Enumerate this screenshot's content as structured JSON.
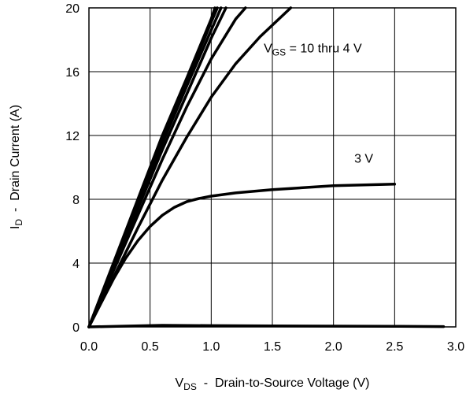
{
  "chart_data": {
    "type": "line",
    "xlim": [
      0,
      3
    ],
    "ylim": [
      0,
      20
    ],
    "x_ticks": [
      "0.0",
      "0.5",
      "1.0",
      "1.5",
      "2.0",
      "2.5",
      "3.0"
    ],
    "y_ticks": [
      "0",
      "4",
      "8",
      "12",
      "16",
      "20"
    ],
    "grid": true,
    "legend": "none",
    "xlabel": {
      "main": "V",
      "sub": "DS",
      "rest": "  -  Drain-to-Source Voltage (V)"
    },
    "ylabel": {
      "main": "I",
      "sub": "D",
      "rest": "  -  Drain Current (A)"
    },
    "annotations": [
      {
        "main": "V",
        "sub": "GS",
        "rest": " = 10 thru 4 V",
        "at": [
          1.43,
          17.2
        ]
      },
      {
        "main": "3 V",
        "sub": "",
        "rest": "",
        "at": [
          2.17,
          10.3
        ]
      }
    ],
    "line_color": "#000000",
    "series": [
      {
        "x": [
          0,
          0.2,
          0.4,
          0.6,
          0.8,
          1.0,
          1.03
        ],
        "y": [
          0,
          4.0,
          8.0,
          12.0,
          15.6,
          19.3,
          20
        ]
      },
      {
        "x": [
          0,
          0.2,
          0.4,
          0.6,
          0.8,
          1.0,
          1.05
        ],
        "y": [
          0,
          3.9,
          7.9,
          11.8,
          15.4,
          19.1,
          20
        ]
      },
      {
        "x": [
          0,
          0.2,
          0.4,
          0.6,
          0.8,
          1.0,
          1.08
        ],
        "y": [
          0,
          3.8,
          7.7,
          11.5,
          15.1,
          18.6,
          20
        ]
      },
      {
        "x": [
          0,
          0.2,
          0.4,
          0.6,
          0.8,
          1.0,
          1.12
        ],
        "y": [
          0,
          3.7,
          7.4,
          11.1,
          14.6,
          18.1,
          20
        ]
      },
      {
        "x": [
          0,
          0.2,
          0.4,
          0.6,
          0.8,
          1.0,
          1.2,
          1.28
        ],
        "y": [
          0,
          3.5,
          7.0,
          10.5,
          13.8,
          16.8,
          19.3,
          20
        ]
      },
      {
        "x": [
          0,
          0.2,
          0.4,
          0.6,
          0.8,
          1.0,
          1.2,
          1.4,
          1.65
        ],
        "y": [
          0,
          3.1,
          6.2,
          9.2,
          11.9,
          14.4,
          16.5,
          18.2,
          20
        ]
      },
      {
        "x": [
          0,
          0.1,
          0.2,
          0.3,
          0.4,
          0.5,
          0.6,
          0.7,
          0.8,
          0.9,
          1.0,
          1.2,
          1.5,
          2.0,
          2.5
        ],
        "y": [
          0,
          1.5,
          3.0,
          4.3,
          5.4,
          6.3,
          7.0,
          7.5,
          7.85,
          8.05,
          8.2,
          8.4,
          8.6,
          8.85,
          8.95
        ]
      },
      {
        "x": [
          0,
          0.3,
          0.6,
          1.0,
          1.5,
          2.0,
          2.5,
          2.9
        ],
        "y": [
          0,
          0.05,
          0.1,
          0.08,
          0.06,
          0.05,
          0.04,
          0.02
        ]
      }
    ]
  }
}
